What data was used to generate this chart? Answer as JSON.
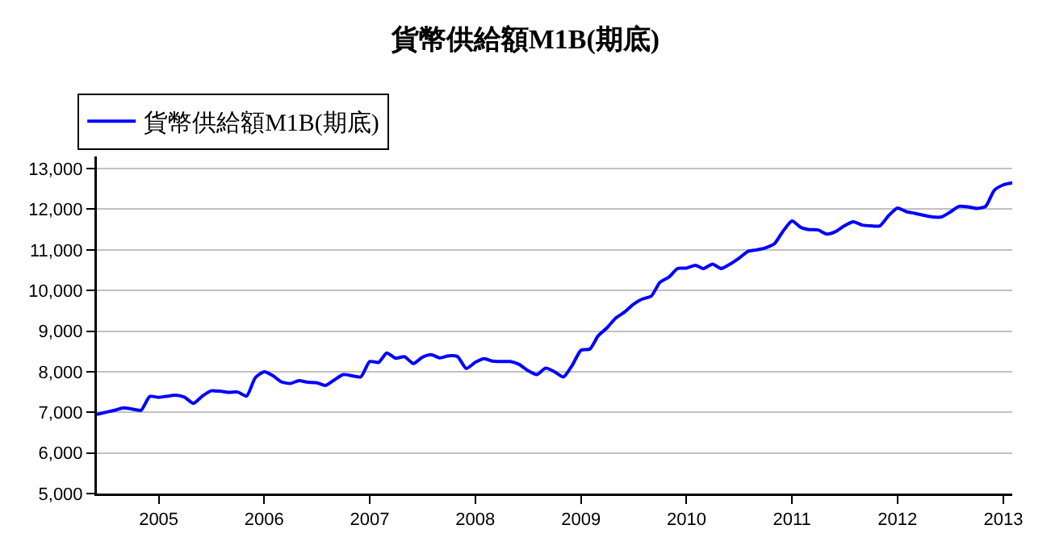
{
  "chart_data": {
    "type": "line",
    "title": "貨幣供給額M1B(期底)",
    "x": [
      "2004-06",
      "2004-07",
      "2004-08",
      "2004-09",
      "2004-10",
      "2004-11",
      "2004-12",
      "2005-01",
      "2005-02",
      "2005-03",
      "2005-04",
      "2005-05",
      "2005-06",
      "2005-07",
      "2005-08",
      "2005-09",
      "2005-10",
      "2005-11",
      "2005-12",
      "2006-01",
      "2006-02",
      "2006-03",
      "2006-04",
      "2006-05",
      "2006-06",
      "2006-07",
      "2006-08",
      "2006-09",
      "2006-10",
      "2006-11",
      "2006-12",
      "2007-01",
      "2007-02",
      "2007-03",
      "2007-04",
      "2007-05",
      "2007-06",
      "2007-07",
      "2007-08",
      "2007-09",
      "2007-10",
      "2007-11",
      "2007-12",
      "2008-01",
      "2008-02",
      "2008-03",
      "2008-04",
      "2008-05",
      "2008-06",
      "2008-07",
      "2008-08",
      "2008-09",
      "2008-10",
      "2008-11",
      "2008-12",
      "2009-01",
      "2009-02",
      "2009-03",
      "2009-04",
      "2009-05",
      "2009-06",
      "2009-07",
      "2009-08",
      "2009-09",
      "2009-10",
      "2009-11",
      "2009-12",
      "2010-01",
      "2010-02",
      "2010-03",
      "2010-04",
      "2010-05",
      "2010-06",
      "2010-07",
      "2010-08",
      "2010-09",
      "2010-10",
      "2010-11",
      "2010-12",
      "2011-01",
      "2011-02",
      "2011-03",
      "2011-04",
      "2011-05",
      "2011-06",
      "2011-07",
      "2011-08",
      "2011-09",
      "2011-10",
      "2011-11",
      "2011-12",
      "2012-01",
      "2012-02",
      "2012-03",
      "2012-04",
      "2012-05",
      "2012-06",
      "2012-07",
      "2012-08",
      "2012-09",
      "2012-10",
      "2012-11",
      "2012-12",
      "2013-01",
      "2013-02"
    ],
    "series": [
      {
        "name": "貨幣供給額M1B(期底)",
        "color": "#0000ff",
        "values": [
          6950,
          7000,
          7050,
          7110,
          7080,
          7050,
          7390,
          7370,
          7400,
          7420,
          7370,
          7220,
          7400,
          7530,
          7520,
          7490,
          7500,
          7400,
          7850,
          8000,
          7900,
          7750,
          7710,
          7780,
          7740,
          7730,
          7660,
          7800,
          7930,
          7900,
          7870,
          8250,
          8230,
          8460,
          8330,
          8370,
          8200,
          8350,
          8420,
          8340,
          8390,
          8370,
          8080,
          8230,
          8320,
          8260,
          8250,
          8250,
          8180,
          8030,
          7930,
          8090,
          8000,
          7870,
          8150,
          8530,
          8560,
          8880,
          9080,
          9320,
          9470,
          9660,
          9790,
          9860,
          10200,
          10330,
          10540,
          10550,
          10620,
          10540,
          10650,
          10540,
          10650,
          10790,
          10960,
          11000,
          11050,
          11150,
          11460,
          11710,
          11550,
          11500,
          11490,
          11390,
          11450,
          11590,
          11690,
          11610,
          11590,
          11590,
          11840,
          12030,
          11940,
          11900,
          11850,
          11810,
          11810,
          11930,
          12070,
          12060,
          12020,
          12070,
          12470,
          12600,
          12650
        ]
      }
    ],
    "xlim": [
      "2004-06",
      "2013-02"
    ],
    "xticks": [
      {
        "value": "2005-01",
        "label": "2005"
      },
      {
        "value": "2006-01",
        "label": "2006"
      },
      {
        "value": "2007-01",
        "label": "2007"
      },
      {
        "value": "2008-01",
        "label": "2008"
      },
      {
        "value": "2009-01",
        "label": "2009"
      },
      {
        "value": "2010-01",
        "label": "2010"
      },
      {
        "value": "2011-01",
        "label": "2011"
      },
      {
        "value": "2012-01",
        "label": "2012"
      },
      {
        "value": "2013-01",
        "label": "2013"
      }
    ],
    "ylim": [
      5000,
      13300
    ],
    "yticks": [
      {
        "value": 5000,
        "label": "5,000"
      },
      {
        "value": 6000,
        "label": "6,000"
      },
      {
        "value": 7000,
        "label": "7,000"
      },
      {
        "value": 8000,
        "label": "8,000"
      },
      {
        "value": 9000,
        "label": "9,000"
      },
      {
        "value": 10000,
        "label": "10,000"
      },
      {
        "value": 11000,
        "label": "11,000"
      },
      {
        "value": 12000,
        "label": "12,000"
      },
      {
        "value": 13000,
        "label": "13,000"
      }
    ],
    "grid": "y",
    "legend": "top left",
    "marker": "none",
    "line_style": "solid"
  }
}
